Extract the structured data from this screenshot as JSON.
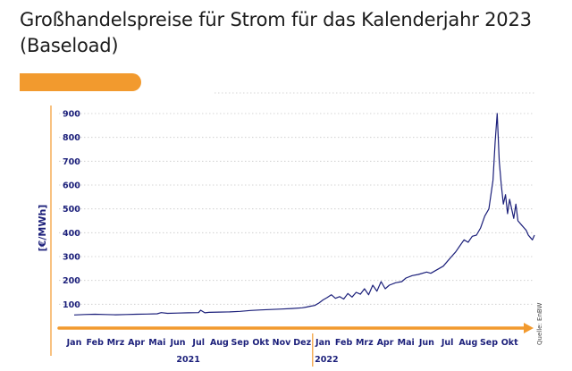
{
  "title_line1": "Großhandelspreise für Strom für das Kalenderjahr 2023",
  "title_line2": "(Baseload)",
  "source": "Quelle: EnBW",
  "colors": {
    "line": "#1b1f7a",
    "accent": "#f29a2e",
    "grid": "#c9c9c9"
  },
  "chart_data": {
    "type": "line",
    "title": "Großhandelspreise für Strom für das Kalenderjahr 2023 (Baseload)",
    "xlabel": "",
    "ylabel": "[€/MWh]",
    "ylim": [
      0,
      900
    ],
    "yticks": [
      100,
      200,
      300,
      400,
      500,
      600,
      700,
      800,
      900
    ],
    "grid": true,
    "x_months": [
      "Jan",
      "Feb",
      "Mrz",
      "Apr",
      "Mai",
      "Jun",
      "Jul",
      "Aug",
      "Sep",
      "Okt",
      "Nov",
      "Dez",
      "Jan",
      "Feb",
      "Mrz",
      "Apr",
      "Mai",
      "Jun",
      "Jul",
      "Aug",
      "Sep",
      "Okt"
    ],
    "x_years": [
      {
        "label": "2021",
        "start": 0,
        "end": 11
      },
      {
        "label": "2022",
        "start": 12,
        "end": 21
      }
    ],
    "series": [
      {
        "x": [
          0.0,
          0.5,
          1.0,
          1.5,
          2.0,
          2.5,
          3.0,
          3.5,
          4.0,
          4.2,
          4.5,
          5.0,
          5.5,
          6.0,
          6.1,
          6.3,
          6.5,
          7.0,
          7.5,
          8.0,
          8.5,
          9.0,
          9.5,
          10.0,
          10.5,
          11.0,
          11.2,
          11.4,
          11.6,
          11.8,
          12.0,
          12.2,
          12.4,
          12.6,
          12.8,
          13.0,
          13.2,
          13.4,
          13.6,
          13.8,
          14.0,
          14.2,
          14.4,
          14.6,
          14.8,
          15.0,
          15.2,
          15.5,
          15.8,
          16.0,
          16.3,
          16.6,
          17.0,
          17.2,
          17.5,
          17.8,
          18.0,
          18.2,
          18.4,
          18.6,
          18.8,
          19.0,
          19.2,
          19.4,
          19.6,
          19.8,
          20.0,
          20.1,
          20.2,
          20.3,
          20.4,
          20.5,
          20.6,
          20.7,
          20.8,
          20.9,
          21.0,
          21.1,
          21.2,
          21.3,
          21.4,
          21.6,
          21.8,
          21.9,
          22.0,
          22.1,
          22.2
        ],
        "y": [
          55,
          57,
          58,
          57,
          56,
          57,
          58,
          59,
          60,
          65,
          62,
          63,
          64,
          65,
          75,
          64,
          66,
          67,
          68,
          70,
          74,
          76,
          78,
          80,
          82,
          85,
          88,
          92,
          95,
          105,
          118,
          128,
          140,
          125,
          132,
          122,
          145,
          130,
          150,
          142,
          165,
          140,
          180,
          155,
          195,
          165,
          180,
          190,
          195,
          210,
          220,
          225,
          235,
          230,
          245,
          260,
          280,
          300,
          320,
          345,
          370,
          360,
          385,
          390,
          420,
          470,
          500,
          560,
          620,
          780,
          900,
          700,
          600,
          520,
          560,
          480,
          540,
          500,
          460,
          520,
          450,
          430,
          410,
          390,
          380,
          370,
          390
        ]
      }
    ]
  }
}
